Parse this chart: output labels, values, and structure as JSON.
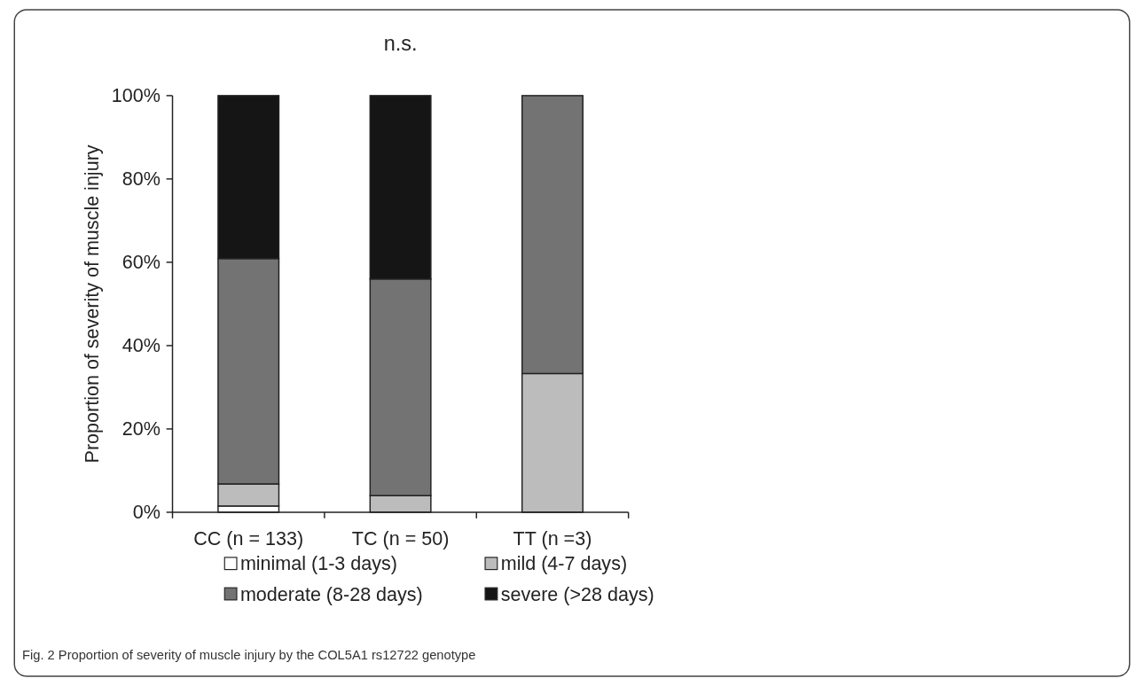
{
  "chart_data": {
    "type": "bar",
    "stacked": true,
    "ylabel": "Proportion of severity of muscle injury",
    "categories": [
      "CC (n = 133)",
      "TC (n = 50)",
      "TT (n =3)"
    ],
    "series": [
      {
        "name": "minimal (1-3 days)",
        "color": "#ffffff",
        "values": [
          1.5,
          0,
          0
        ]
      },
      {
        "name": "mild (4-7 days)",
        "color": "#bcbcbc",
        "values": [
          5.3,
          4,
          33.3
        ]
      },
      {
        "name": "moderate (8-28 days)",
        "color": "#737373",
        "values": [
          54.1,
          52,
          66.7
        ]
      },
      {
        "name": "severe (>28 days)",
        "color": "#151515",
        "values": [
          39.1,
          44,
          0
        ]
      }
    ],
    "ylim": [
      0,
      100
    ],
    "yticks": [
      {
        "value": 0,
        "label": "0%"
      },
      {
        "value": 20,
        "label": "20%"
      },
      {
        "value": 40,
        "label": "40%"
      },
      {
        "value": 60,
        "label": "60%"
      },
      {
        "value": 80,
        "label": "80%"
      },
      {
        "value": 100,
        "label": "100%"
      }
    ],
    "grid": false,
    "legend": "bottom",
    "annotations": [
      "n.s.",
      "Fig. 2 Proportion of severity of muscle injury by the COL5A1 rs12722 genotype"
    ]
  }
}
